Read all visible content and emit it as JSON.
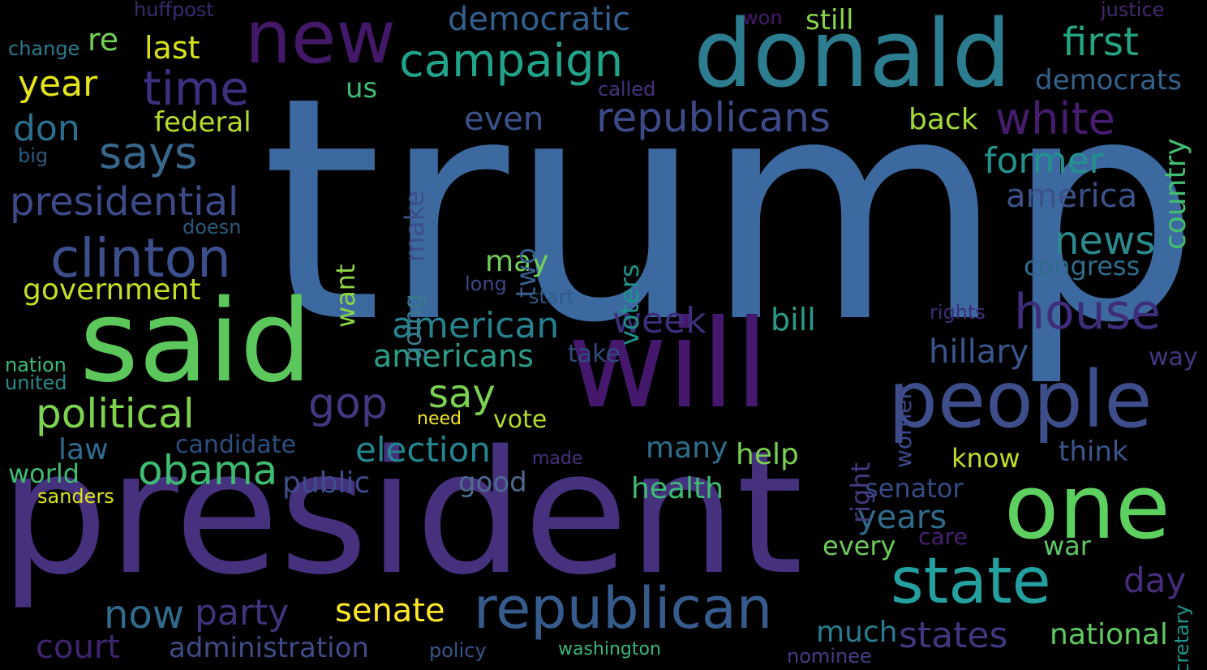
{
  "words": [
    {
      "text": "trump",
      "color": "#3c6aa0"
    },
    {
      "text": "president",
      "color": "#46317e"
    },
    {
      "text": "will",
      "color": "#45186e"
    },
    {
      "text": "said",
      "color": "#5cc85c"
    },
    {
      "text": "donald",
      "color": "#2c7d8f"
    },
    {
      "text": "people",
      "color": "#3d4e8a"
    },
    {
      "text": "one",
      "color": "#5ed060"
    },
    {
      "text": "new",
      "color": "#431868"
    },
    {
      "text": "republican",
      "color": "#355c8c"
    },
    {
      "text": "state",
      "color": "#25a0a0"
    },
    {
      "text": "clinton",
      "color": "#3b4f8c"
    },
    {
      "text": "house",
      "color": "#3e2d7a"
    },
    {
      "text": "time",
      "color": "#3f2f80"
    },
    {
      "text": "says",
      "color": "#37678c"
    },
    {
      "text": "campaign",
      "color": "#21a38a"
    },
    {
      "text": "republicans",
      "color": "#3e4a88"
    },
    {
      "text": "white",
      "color": "#461c6e"
    },
    {
      "text": "presidential",
      "color": "#3d4a88"
    },
    {
      "text": "political",
      "color": "#7ed34e"
    },
    {
      "text": "obama",
      "color": "#3fbc73"
    },
    {
      "text": "gop",
      "color": "#443781"
    },
    {
      "text": "news",
      "color": "#2c8a8e"
    },
    {
      "text": "former",
      "color": "#21928c"
    },
    {
      "text": "american",
      "color": "#27808e"
    },
    {
      "text": "first",
      "color": "#23a584"
    },
    {
      "text": "year",
      "color": "#e5e419"
    },
    {
      "text": "week",
      "color": "#3b2e7a"
    },
    {
      "text": "states",
      "color": "#40377f"
    },
    {
      "text": "now",
      "color": "#306b8e"
    },
    {
      "text": "party",
      "color": "#41337c"
    },
    {
      "text": "election",
      "color": "#24858e"
    },
    {
      "text": "senate",
      "color": "#fde725"
    },
    {
      "text": "say",
      "color": "#7ad151"
    },
    {
      "text": "americans",
      "color": "#2c9c88"
    },
    {
      "text": "hillary",
      "color": "#39558c"
    },
    {
      "text": "america",
      "color": "#3b5289"
    },
    {
      "text": "democratic",
      "color": "#31608e"
    },
    {
      "text": "government",
      "color": "#c2df23"
    },
    {
      "text": "even",
      "color": "#3b518a"
    },
    {
      "text": "don",
      "color": "#2a6f8e"
    },
    {
      "text": "court",
      "color": "#3f2470"
    },
    {
      "text": "administration",
      "color": "#3f4c88"
    },
    {
      "text": "years",
      "color": "#306b8e"
    },
    {
      "text": "day",
      "color": "#472d7b"
    },
    {
      "text": "national",
      "color": "#5fca61"
    },
    {
      "text": "much",
      "color": "#2a7b8e"
    },
    {
      "text": "last",
      "color": "#d8e219"
    },
    {
      "text": "re",
      "color": "#74d055"
    },
    {
      "text": "federal",
      "color": "#b5de2b"
    },
    {
      "text": "back",
      "color": "#a2da37"
    },
    {
      "text": "democrats",
      "color": "#33638d"
    },
    {
      "text": "country",
      "color": "#42be71"
    },
    {
      "text": "congress",
      "color": "#2f6c8e"
    },
    {
      "text": "bill",
      "color": "#2a9a8a"
    },
    {
      "text": "may",
      "color": "#70cf57"
    },
    {
      "text": "many",
      "color": "#2e6f8e"
    },
    {
      "text": "help",
      "color": "#7ad151"
    },
    {
      "text": "health",
      "color": "#3dbc74"
    },
    {
      "text": "good",
      "color": "#4f6a8e"
    },
    {
      "text": "public",
      "color": "#3e4c8a"
    },
    {
      "text": "candidate",
      "color": "#2c4f80"
    },
    {
      "text": "law",
      "color": "#2e6b8e"
    },
    {
      "text": "world",
      "color": "#3fbc73"
    },
    {
      "text": "think",
      "color": "#3a548c"
    },
    {
      "text": "know",
      "color": "#bfdf25"
    },
    {
      "text": "vote",
      "color": "#b3dc2b"
    },
    {
      "text": "still",
      "color": "#86d549"
    },
    {
      "text": "us",
      "color": "#3fbc73"
    },
    {
      "text": "take",
      "color": "#2f4c80"
    },
    {
      "text": "way",
      "color": "#45357f"
    },
    {
      "text": "senator",
      "color": "#364b86"
    },
    {
      "text": "war",
      "color": "#5dc963"
    },
    {
      "text": "every",
      "color": "#6ccd5a"
    },
    {
      "text": "care",
      "color": "#481f70"
    },
    {
      "text": "want",
      "color": "#8ed645"
    },
    {
      "text": "voters",
      "color": "#20928c"
    },
    {
      "text": "two",
      "color": "#365c8d"
    },
    {
      "text": "make",
      "color": "#3d4d8a"
    },
    {
      "text": "going",
      "color": "#3a7a8c"
    },
    {
      "text": "right",
      "color": "#433b82"
    },
    {
      "text": "women",
      "color": "#3d4889"
    },
    {
      "text": "rights",
      "color": "#3f2d7a"
    },
    {
      "text": "long",
      "color": "#3b478a"
    },
    {
      "text": "start",
      "color": "#2e5a8a"
    },
    {
      "text": "doesn",
      "color": "#2a5a7a"
    },
    {
      "text": "called",
      "color": "#46327e"
    },
    {
      "text": "need",
      "color": "#f2e51d"
    },
    {
      "text": "made",
      "color": "#46307c"
    },
    {
      "text": "policy",
      "color": "#39558c"
    },
    {
      "text": "washington",
      "color": "#35b779"
    },
    {
      "text": "nominee",
      "color": "#433e85"
    },
    {
      "text": "secretary",
      "color": "#1f968b"
    },
    {
      "text": "sanders",
      "color": "#dde318"
    },
    {
      "text": "nation",
      "color": "#3dbc74"
    },
    {
      "text": "united",
      "color": "#2a8a8c"
    },
    {
      "text": "change",
      "color": "#2a7b8e"
    },
    {
      "text": "big",
      "color": "#2a5a7e"
    },
    {
      "text": "huffpost",
      "color": "#3b2a6e"
    },
    {
      "text": "won",
      "color": "#481a6c"
    },
    {
      "text": "justice",
      "color": "#46276f"
    }
  ]
}
